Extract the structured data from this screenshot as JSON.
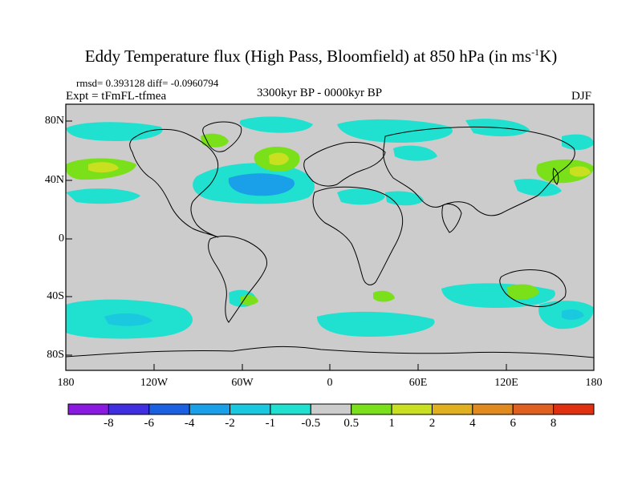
{
  "title": {
    "main": "Eddy Temperature flux (High Pass, Bloomfield) at 850 hPa (in ms",
    "sup": "-1",
    "tail": "K)"
  },
  "stats": "rmsd= 0.393128 diff= -0.0960794",
  "experiment": "Expt = tFmFL-tfmea",
  "period": "3300kyr BP - 0000kyr BP",
  "season": "DJF",
  "lat_labels": [
    "80N",
    "40N",
    "0",
    "40S",
    "80S"
  ],
  "lon_labels": [
    "180",
    "120W",
    "60W",
    "0",
    "60E",
    "120E",
    "180"
  ],
  "colorbar": {
    "labels": [
      "-8",
      "-6",
      "-4",
      "-2",
      "-1",
      "-0.5",
      "0.5",
      "1",
      "2",
      "4",
      "6",
      "8"
    ],
    "colors": [
      "#8a1ae0",
      "#3f2fe0",
      "#1a60e0",
      "#1aa0e8",
      "#1ac8e0",
      "#20e0d0",
      "#cccccc",
      "#7ae01a",
      "#c8e020",
      "#e0b020",
      "#e08a20",
      "#e06020",
      "#e03010"
    ]
  },
  "map_colors": {
    "ocean": "#cccccc",
    "cyan": "#20e0d0",
    "lightblue": "#1ac8e0",
    "blue": "#1aa0e8",
    "green": "#7ae01a",
    "yellowgreen": "#c8e020",
    "coast": "#000000"
  }
}
